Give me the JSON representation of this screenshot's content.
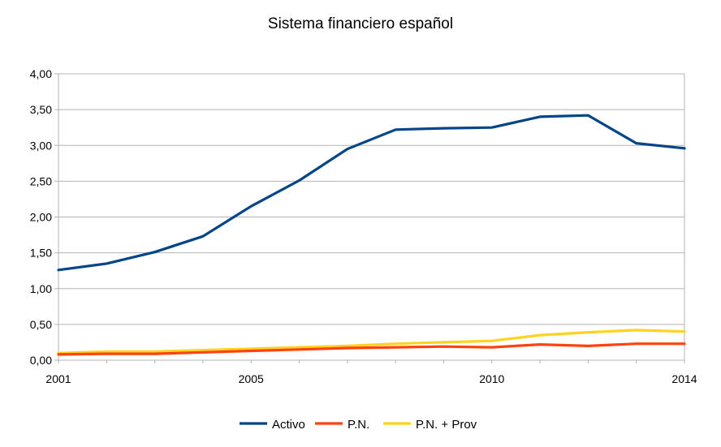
{
  "chart_data": {
    "type": "line",
    "title": "Sistema financiero español",
    "xlabel": "",
    "ylabel": "",
    "x": [
      2001,
      2002,
      2003,
      2004,
      2005,
      2006,
      2007,
      2008,
      2009,
      2010,
      2011,
      2012,
      2013,
      2014
    ],
    "x_tick_labels": [
      "2001",
      "2005",
      "2010",
      "2014"
    ],
    "x_tick_values": [
      2001,
      2005,
      2010,
      2014
    ],
    "ylim": [
      0,
      4
    ],
    "y_tick_labels": [
      "0,00",
      "0,50",
      "1,00",
      "1,50",
      "2,00",
      "2,50",
      "3,00",
      "3,50",
      "4,00"
    ],
    "y_tick_values": [
      0,
      0.5,
      1,
      1.5,
      2,
      2.5,
      3,
      3.5,
      4
    ],
    "grid": true,
    "legend_position": "bottom",
    "series": [
      {
        "name": "Activo",
        "color": "#004586",
        "values": [
          1.26,
          1.35,
          1.51,
          1.73,
          2.15,
          2.51,
          2.95,
          3.22,
          3.24,
          3.25,
          3.4,
          3.42,
          3.03,
          2.96
        ]
      },
      {
        "name": "P.N.",
        "color": "#ff420e",
        "values": [
          0.08,
          0.09,
          0.09,
          0.11,
          0.13,
          0.15,
          0.17,
          0.18,
          0.19,
          0.18,
          0.22,
          0.2,
          0.23,
          0.23
        ]
      },
      {
        "name": "P.N. + Prov",
        "color": "#ffd320",
        "values": [
          0.1,
          0.12,
          0.12,
          0.14,
          0.16,
          0.18,
          0.2,
          0.23,
          0.25,
          0.27,
          0.35,
          0.39,
          0.42,
          0.4
        ]
      }
    ]
  }
}
